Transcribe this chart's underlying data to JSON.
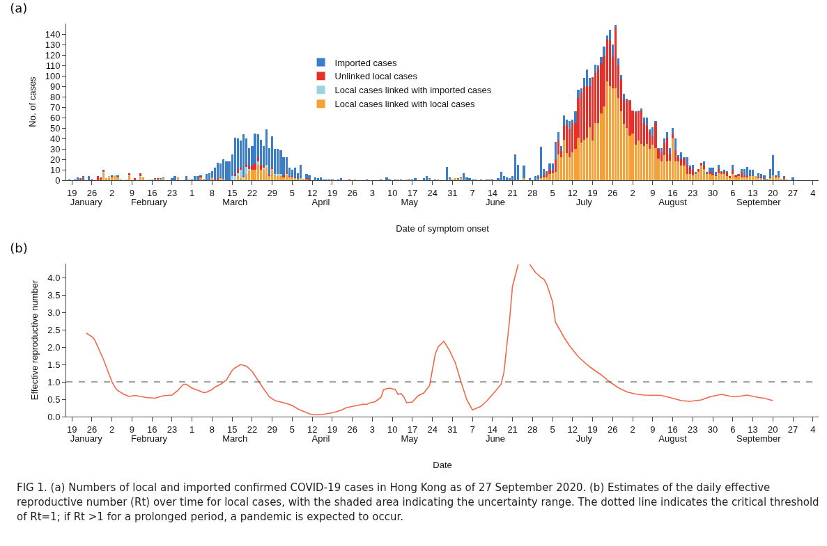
{
  "chart_data": [
    {
      "type": "bar",
      "title": "(a)",
      "xlabel": "Date of symptom onset",
      "ylabel": "No. of cases",
      "stacked": true,
      "legend": "top",
      "grid": false,
      "xlim": [
        "2020-01-17",
        "2020-10-06"
      ],
      "x2lim": [
        "2020-01-17",
        "2020-10-06"
      ],
      "ylim": [
        0,
        150
      ],
      "yticks": [
        0,
        10,
        20,
        30,
        40,
        50,
        60,
        70,
        80,
        90,
        100,
        110,
        120,
        130,
        140
      ],
      "xticks": [
        {
          "value": "2020-01-19",
          "label": "19"
        },
        {
          "value": "2020-01-26",
          "label": "26"
        },
        {
          "value": "2020-02-02",
          "label": "2"
        },
        {
          "value": "2020-02-09",
          "label": "9"
        },
        {
          "value": "2020-02-16",
          "label": "16"
        },
        {
          "value": "2020-02-23",
          "label": "23"
        },
        {
          "value": "2020-03-01",
          "label": "1"
        },
        {
          "value": "2020-03-08",
          "label": "8"
        },
        {
          "value": "2020-03-15",
          "label": "15"
        },
        {
          "value": "2020-03-22",
          "label": "22"
        },
        {
          "value": "2020-03-29",
          "label": "29"
        },
        {
          "value": "2020-04-05",
          "label": "5"
        },
        {
          "value": "2020-04-12",
          "label": "12"
        },
        {
          "value": "2020-04-19",
          "label": "19"
        },
        {
          "value": "2020-04-26",
          "label": "26"
        },
        {
          "value": "2020-05-03",
          "label": "3"
        },
        {
          "value": "2020-05-10",
          "label": "10"
        },
        {
          "value": "2020-05-17",
          "label": "17"
        },
        {
          "value": "2020-05-24",
          "label": "24"
        },
        {
          "value": "2020-05-31",
          "label": "31"
        },
        {
          "value": "2020-06-07",
          "label": "7"
        },
        {
          "value": "2020-06-14",
          "label": "14"
        },
        {
          "value": "2020-06-21",
          "label": "21"
        },
        {
          "value": "2020-06-28",
          "label": "28"
        },
        {
          "value": "2020-07-05",
          "label": "5"
        },
        {
          "value": "2020-07-12",
          "label": "12"
        },
        {
          "value": "2020-07-19",
          "label": "19"
        },
        {
          "value": "2020-07-26",
          "label": "26"
        },
        {
          "value": "2020-08-02",
          "label": "2"
        },
        {
          "value": "2020-08-09",
          "label": "9"
        },
        {
          "value": "2020-08-16",
          "label": "16"
        },
        {
          "value": "2020-08-23",
          "label": "23"
        },
        {
          "value": "2020-08-30",
          "label": "30"
        },
        {
          "value": "2020-09-06",
          "label": "6"
        },
        {
          "value": "2020-09-13",
          "label": "13"
        },
        {
          "value": "2020-09-20",
          "label": "20"
        },
        {
          "value": "2020-09-27",
          "label": "27"
        },
        {
          "value": "2020-10-04",
          "label": "4"
        }
      ],
      "x2ticks": [
        {
          "value": "2020-01-24",
          "label": "January"
        },
        {
          "value": "2020-02-15",
          "label": "February"
        },
        {
          "value": "2020-03-16",
          "label": "March"
        },
        {
          "value": "2020-04-15",
          "label": "April"
        },
        {
          "value": "2020-05-16",
          "label": "May"
        },
        {
          "value": "2020-06-15",
          "label": "June"
        },
        {
          "value": "2020-07-16",
          "label": "July"
        },
        {
          "value": "2020-08-16",
          "label": "August"
        },
        {
          "value": "2020-09-15",
          "label": "September"
        }
      ],
      "x": [
        "2020-01-18",
        "2020-01-19",
        "2020-01-20",
        "2020-01-21",
        "2020-01-22",
        "2020-01-23",
        "2020-01-24",
        "2020-01-25",
        "2020-01-26",
        "2020-01-27",
        "2020-01-28",
        "2020-01-29",
        "2020-01-30",
        "2020-01-31",
        "2020-02-01",
        "2020-02-02",
        "2020-02-03",
        "2020-02-04",
        "2020-02-05",
        "2020-02-06",
        "2020-02-07",
        "2020-02-08",
        "2020-02-09",
        "2020-02-10",
        "2020-02-11",
        "2020-02-12",
        "2020-02-13",
        "2020-02-14",
        "2020-02-15",
        "2020-02-16",
        "2020-02-17",
        "2020-02-18",
        "2020-02-19",
        "2020-02-20",
        "2020-02-21",
        "2020-02-22",
        "2020-02-23",
        "2020-02-24",
        "2020-02-25",
        "2020-02-26",
        "2020-02-27",
        "2020-02-28",
        "2020-02-29",
        "2020-03-01",
        "2020-03-02",
        "2020-03-03",
        "2020-03-04",
        "2020-03-05",
        "2020-03-06",
        "2020-03-07",
        "2020-03-08",
        "2020-03-09",
        "2020-03-10",
        "2020-03-11",
        "2020-03-12",
        "2020-03-13",
        "2020-03-14",
        "2020-03-15",
        "2020-03-16",
        "2020-03-17",
        "2020-03-18",
        "2020-03-19",
        "2020-03-20",
        "2020-03-21",
        "2020-03-22",
        "2020-03-23",
        "2020-03-24",
        "2020-03-25",
        "2020-03-26",
        "2020-03-27",
        "2020-03-28",
        "2020-03-29",
        "2020-03-30",
        "2020-03-31",
        "2020-04-01",
        "2020-04-02",
        "2020-04-03",
        "2020-04-04",
        "2020-04-05",
        "2020-04-06",
        "2020-04-07",
        "2020-04-08",
        "2020-04-09",
        "2020-04-10",
        "2020-04-11",
        "2020-04-12",
        "2020-04-13",
        "2020-04-14",
        "2020-04-15",
        "2020-04-16",
        "2020-04-17",
        "2020-04-18",
        "2020-04-19",
        "2020-04-20",
        "2020-04-21",
        "2020-04-22",
        "2020-04-23",
        "2020-04-24",
        "2020-04-25",
        "2020-04-26",
        "2020-04-27",
        "2020-04-28",
        "2020-04-29",
        "2020-04-30",
        "2020-05-01",
        "2020-05-02",
        "2020-05-03",
        "2020-05-04",
        "2020-05-05",
        "2020-05-06",
        "2020-05-07",
        "2020-05-08",
        "2020-05-09",
        "2020-05-10",
        "2020-05-11",
        "2020-05-12",
        "2020-05-13",
        "2020-05-14",
        "2020-05-15",
        "2020-05-16",
        "2020-05-17",
        "2020-05-18",
        "2020-05-19",
        "2020-05-20",
        "2020-05-21",
        "2020-05-22",
        "2020-05-23",
        "2020-05-24",
        "2020-05-25",
        "2020-05-26",
        "2020-05-27",
        "2020-05-28",
        "2020-05-29",
        "2020-05-30",
        "2020-05-31",
        "2020-06-01",
        "2020-06-02",
        "2020-06-03",
        "2020-06-04",
        "2020-06-05",
        "2020-06-06",
        "2020-06-07",
        "2020-06-08",
        "2020-06-09",
        "2020-06-10",
        "2020-06-11",
        "2020-06-12",
        "2020-06-13",
        "2020-06-14",
        "2020-06-15",
        "2020-06-16",
        "2020-06-17",
        "2020-06-18",
        "2020-06-19",
        "2020-06-20",
        "2020-06-21",
        "2020-06-22",
        "2020-06-23",
        "2020-06-24",
        "2020-06-25",
        "2020-06-26",
        "2020-06-27",
        "2020-06-28",
        "2020-06-29",
        "2020-06-30",
        "2020-07-01",
        "2020-07-02",
        "2020-07-03",
        "2020-07-04",
        "2020-07-05",
        "2020-07-06",
        "2020-07-07",
        "2020-07-08",
        "2020-07-09",
        "2020-07-10",
        "2020-07-11",
        "2020-07-12",
        "2020-07-13",
        "2020-07-14",
        "2020-07-15",
        "2020-07-16",
        "2020-07-17",
        "2020-07-18",
        "2020-07-19",
        "2020-07-20",
        "2020-07-21",
        "2020-07-22",
        "2020-07-23",
        "2020-07-24",
        "2020-07-25",
        "2020-07-26",
        "2020-07-27",
        "2020-07-28",
        "2020-07-29",
        "2020-07-30",
        "2020-07-31",
        "2020-08-01",
        "2020-08-02",
        "2020-08-03",
        "2020-08-04",
        "2020-08-05",
        "2020-08-06",
        "2020-08-07",
        "2020-08-08",
        "2020-08-09",
        "2020-08-10",
        "2020-08-11",
        "2020-08-12",
        "2020-08-13",
        "2020-08-14",
        "2020-08-15",
        "2020-08-16",
        "2020-08-17",
        "2020-08-18",
        "2020-08-19",
        "2020-08-20",
        "2020-08-21",
        "2020-08-22",
        "2020-08-23",
        "2020-08-24",
        "2020-08-25",
        "2020-08-26",
        "2020-08-27",
        "2020-08-28",
        "2020-08-29",
        "2020-08-30",
        "2020-08-31",
        "2020-09-01",
        "2020-09-02",
        "2020-09-03",
        "2020-09-04",
        "2020-09-05",
        "2020-09-06",
        "2020-09-07",
        "2020-09-08",
        "2020-09-09",
        "2020-09-10",
        "2020-09-11",
        "2020-09-12",
        "2020-09-13",
        "2020-09-14",
        "2020-09-15",
        "2020-09-16",
        "2020-09-17",
        "2020-09-18",
        "2020-09-19",
        "2020-09-20",
        "2020-09-21",
        "2020-09-22",
        "2020-09-23",
        "2020-09-24",
        "2020-09-25",
        "2020-09-26",
        "2020-09-27"
      ],
      "series": [
        {
          "name": "Local cases linked with local cases",
          "color": "#f6a035",
          "values": [
            null,
            null,
            null,
            null,
            null,
            null,
            null,
            null,
            null,
            null,
            null,
            null,
            7,
            2,
            2,
            3,
            4,
            3,
            1,
            null,
            null,
            4,
            null,
            null,
            null,
            3,
            3,
            null,
            null,
            1,
            1,
            1,
            1,
            2,
            null,
            null,
            null,
            null,
            3,
            null,
            null,
            null,
            1,
            null,
            null,
            null,
            3,
            null,
            null,
            null,
            3,
            null,
            null,
            2,
            null,
            null,
            null,
            null,
            null,
            4,
            2,
            1,
            6,
            9,
            10,
            10,
            15,
            10,
            10,
            12,
            4,
            10,
            5,
            4,
            4,
            3,
            5,
            3,
            3,
            2,
            1,
            2,
            null,
            1,
            null,
            null,
            null,
            null,
            null,
            null,
            null,
            null,
            null,
            null,
            null,
            null,
            null,
            null,
            null,
            null,
            1,
            null,
            null,
            null,
            null,
            null,
            null,
            null,
            null,
            null,
            null,
            null,
            null,
            null,
            null,
            1,
            null,
            null,
            1,
            null,
            null,
            null,
            null,
            null,
            null,
            null,
            1,
            null,
            null,
            1,
            null,
            null,
            null,
            1,
            1,
            2,
            1,
            2,
            null,
            null,
            null,
            null,
            null,
            null,
            null,
            null,
            null,
            null,
            null,
            null,
            null,
            null,
            null,
            null,
            null,
            null,
            null,
            null,
            null,
            2,
            null,
            null,
            null,
            null,
            1,
            2,
            3,
            3,
            6,
            7,
            8,
            25,
            22,
            39,
            26,
            22,
            27,
            30,
            41,
            36,
            39,
            41,
            51,
            38,
            55,
            55,
            64,
            71,
            95,
            90,
            88,
            88,
            79,
            66,
            54,
            50,
            43,
            45,
            34,
            38,
            35,
            33,
            35,
            30,
            34,
            31,
            21,
            18,
            24,
            18,
            19,
            40,
            18,
            18,
            14,
            14,
            6,
            6,
            5,
            6,
            8,
            14,
            11,
            6,
            6,
            5,
            4,
            7,
            6,
            6,
            4,
            2,
            6,
            3,
            4,
            3,
            3,
            3,
            4,
            4,
            4,
            2,
            2,
            1,
            null,
            2,
            5,
            3,
            3,
            null,
            1,
            1,
            null,
            null
          ]
        },
        {
          "name": "Local cases linked with imported cases",
          "color": "#99d4e2",
          "values": [
            null,
            null,
            null,
            null,
            null,
            null,
            null,
            null,
            null,
            null,
            null,
            null,
            1,
            null,
            2,
            null,
            1,
            null,
            null,
            null,
            1,
            1,
            null,
            null,
            null,
            1,
            null,
            null,
            1,
            null,
            null,
            null,
            null,
            null,
            null,
            null,
            null,
            null,
            null,
            null,
            null,
            null,
            null,
            null,
            null,
            null,
            null,
            null,
            null,
            null,
            null,
            null,
            null,
            null,
            1,
            null,
            null,
            4,
            4,
            3,
            8,
            2,
            7,
            2,
            null,
            null,
            3,
            null,
            2,
            3,
            null,
            1,
            1,
            2,
            2,
            null,
            1,
            null,
            null,
            null,
            null,
            null,
            null,
            null,
            null,
            null,
            null,
            null,
            null,
            null,
            null,
            null,
            null,
            null,
            null,
            null,
            null,
            null,
            null,
            null,
            null,
            null,
            null,
            null,
            null,
            null,
            null,
            null,
            null,
            null,
            null,
            null,
            null,
            null,
            null,
            null,
            null,
            null,
            null,
            null,
            null,
            null,
            null,
            null,
            null,
            null,
            null,
            null,
            null,
            null,
            null,
            null,
            null,
            null,
            null,
            null,
            null,
            null,
            null,
            null,
            null,
            null,
            null,
            null,
            null,
            null,
            null,
            null,
            null,
            null,
            null,
            null,
            null,
            null,
            null,
            null,
            null,
            null,
            null,
            null,
            null,
            null,
            null,
            null,
            null,
            null,
            null,
            null,
            null,
            null,
            null,
            null,
            null,
            null,
            null,
            null,
            null,
            null,
            null,
            null,
            null,
            null,
            null,
            null,
            null,
            null,
            null,
            null,
            null,
            null,
            null,
            null,
            null,
            null,
            null,
            null,
            null,
            null,
            null,
            null,
            null,
            null,
            null,
            null,
            null,
            null,
            null,
            null,
            null,
            null,
            null,
            null,
            null,
            null,
            null,
            null,
            null,
            null,
            null,
            null,
            null,
            null,
            null,
            null,
            null,
            null,
            null,
            null,
            null,
            null,
            null,
            null,
            null,
            null,
            null,
            null,
            null,
            null,
            null,
            null,
            null,
            null,
            null,
            null,
            null,
            null,
            null,
            null,
            null,
            null,
            null,
            null,
            null,
            null
          ]
        },
        {
          "name": "Unlinked local cases",
          "color": "#e8302a",
          "values": [
            null,
            null,
            null,
            null,
            2,
            1,
            null,
            null,
            1,
            null,
            4,
            2,
            1,
            null,
            null,
            1,
            null,
            null,
            null,
            null,
            null,
            2,
            null,
            2,
            null,
            2,
            null,
            null,
            null,
            null,
            null,
            1,
            null,
            null,
            null,
            null,
            null,
            null,
            null,
            null,
            null,
            1,
            null,
            null,
            null,
            null,
            1,
            null,
            null,
            null,
            null,
            null,
            2,
            1,
            null,
            null,
            null,
            null,
            2,
            4,
            2,
            1,
            2,
            3,
            4,
            6,
            4,
            5,
            3,
            null,
            1,
            1,
            null,
            null,
            null,
            2,
            2,
            1,
            null,
            1,
            null,
            null,
            null,
            1,
            1,
            null,
            null,
            null,
            null,
            null,
            null,
            null,
            null,
            null,
            null,
            null,
            null,
            null,
            1,
            null,
            null,
            null,
            null,
            null,
            null,
            null,
            null,
            null,
            null,
            null,
            null,
            null,
            1,
            null,
            null,
            null,
            null,
            null,
            null,
            null,
            null,
            null,
            null,
            null,
            null,
            null,
            null,
            null,
            null,
            null,
            null,
            null,
            null,
            null,
            null,
            null,
            null,
            null,
            null,
            null,
            null,
            null,
            null,
            null,
            null,
            null,
            null,
            null,
            null,
            null,
            null,
            null,
            null,
            null,
            null,
            null,
            null,
            null,
            null,
            null,
            null,
            null,
            null,
            null,
            null,
            1,
            2,
            4,
            4,
            2,
            12,
            13,
            6,
            14,
            27,
            27,
            28,
            25,
            38,
            48,
            51,
            49,
            39,
            60,
            48,
            52,
            48,
            48,
            40,
            45,
            30,
            58,
            31,
            31,
            24,
            26,
            33,
            22,
            31,
            28,
            32,
            22,
            18,
            17,
            8,
            24,
            9,
            9,
            12,
            23,
            6,
            5,
            11,
            4,
            6,
            7,
            9,
            6,
            5,
            null,
            3,
            3,
            3,
            null,
            3,
            1,
            1,
            4,
            2,
            2,
            3,
            2,
            4,
            2,
            1,
            5,
            2,
            1,
            1,
            null,
            null,
            1,
            1,
            null,
            1,
            1,
            null,
            null,
            1,
            null,
            1,
            null,
            null,
            null
          ]
        },
        {
          "name": "Imported cases",
          "color": "#3a7dc9",
          "values": [
            1,
            null,
            1,
            3,
            null,
            3,
            null,
            4,
            null,
            null,
            null,
            1,
            1,
            null,
            null,
            1,
            null,
            2,
            null,
            null,
            null,
            null,
            null,
            null,
            null,
            1,
            null,
            null,
            null,
            null,
            1,
            null,
            1,
            1,
            null,
            null,
            2,
            4,
            null,
            null,
            null,
            3,
            null,
            1,
            4,
            4,
            1,
            1,
            6,
            7,
            6,
            12,
            15,
            13,
            19,
            18,
            18,
            21,
            35,
            29,
            26,
            40,
            25,
            17,
            19,
            29,
            22,
            24,
            18,
            34,
            26,
            30,
            24,
            24,
            23,
            17,
            14,
            8,
            7,
            9,
            6,
            13,
            1,
            4,
            4,
            null,
            3,
            2,
            3,
            1,
            1,
            1,
            1,
            null,
            1,
            2,
            null,
            null,
            null,
            null,
            null,
            null,
            null,
            null,
            1,
            null,
            null,
            null,
            null,
            1,
            null,
            3,
            null,
            null,
            1,
            null,
            1,
            null,
            null,
            1,
            1,
            2,
            null,
            null,
            2,
            4,
            1,
            null,
            1,
            null,
            null,
            null,
            13,
            2,
            null,
            null,
            1,
            1,
            7,
            3,
            2,
            1,
            1,
            null,
            1,
            null,
            1,
            1,
            1,
            null,
            2,
            8,
            4,
            3,
            2,
            4,
            25,
            15,
            null,
            12,
            null,
            2,
            null,
            4,
            4,
            29,
            6,
            2,
            6,
            7,
            17,
            8,
            5,
            9,
            5,
            8,
            3,
            11,
            8,
            4,
            8,
            16,
            8,
            1,
            8,
            3,
            6,
            9,
            4,
            9,
            12,
            3,
            7,
            4,
            5,
            2,
            1,
            null,
            1,
            1,
            2,
            5,
            7,
            2,
            9,
            2,
            1,
            4,
            4,
            5,
            6,
            5,
            11,
            2,
            7,
            1,
            7,
            2,
            5,
            2,
            null,
            null,
            4,
            2,
            3,
            6,
            3,
            4,
            1,
            2,
            2,
            null,
            5,
            null,
            1,
            3,
            6,
            9,
            5,
            6,
            null,
            4,
            3,
            4,
            null,
            8,
            19,
            2,
            5,
            1,
            2,
            null,
            null,
            3
          ]
        }
      ]
    },
    {
      "type": "line",
      "title": "(b)",
      "xlabel": "Date",
      "ylabel": "Effective reproductive number",
      "grid": false,
      "xlim": [
        "2020-01-17",
        "2020-10-06"
      ],
      "x2lim": [
        "2020-01-17",
        "2020-10-06"
      ],
      "ylim": [
        0,
        4.4
      ],
      "yticks": [
        {
          "value": 0,
          "label": "0.0"
        },
        {
          "value": 0.5,
          "label": "0.5"
        },
        {
          "value": 1,
          "label": "1.0"
        },
        {
          "value": 1.5,
          "label": "1.5"
        },
        {
          "value": 2,
          "label": "2.0"
        },
        {
          "value": 2.5,
          "label": "2.5"
        },
        {
          "value": 3,
          "label": "3.0"
        },
        {
          "value": 3.5,
          "label": "3.5"
        },
        {
          "value": 4,
          "label": "4.0"
        }
      ],
      "xticks": [
        {
          "value": "2020-01-19",
          "label": "19"
        },
        {
          "value": "2020-01-26",
          "label": "26"
        },
        {
          "value": "2020-02-02",
          "label": "2"
        },
        {
          "value": "2020-02-09",
          "label": "9"
        },
        {
          "value": "2020-02-16",
          "label": "16"
        },
        {
          "value": "2020-02-23",
          "label": "23"
        },
        {
          "value": "2020-03-01",
          "label": "1"
        },
        {
          "value": "2020-03-08",
          "label": "8"
        },
        {
          "value": "2020-03-15",
          "label": "15"
        },
        {
          "value": "2020-03-22",
          "label": "22"
        },
        {
          "value": "2020-03-29",
          "label": "29"
        },
        {
          "value": "2020-04-05",
          "label": "5"
        },
        {
          "value": "2020-04-12",
          "label": "12"
        },
        {
          "value": "2020-04-19",
          "label": "19"
        },
        {
          "value": "2020-04-26",
          "label": "26"
        },
        {
          "value": "2020-05-03",
          "label": "3"
        },
        {
          "value": "2020-05-10",
          "label": "10"
        },
        {
          "value": "2020-05-17",
          "label": "17"
        },
        {
          "value": "2020-05-24",
          "label": "24"
        },
        {
          "value": "2020-05-31",
          "label": "31"
        },
        {
          "value": "2020-06-07",
          "label": "7"
        },
        {
          "value": "2020-06-14",
          "label": "14"
        },
        {
          "value": "2020-06-21",
          "label": "21"
        },
        {
          "value": "2020-06-28",
          "label": "28"
        },
        {
          "value": "2020-07-05",
          "label": "5"
        },
        {
          "value": "2020-07-12",
          "label": "12"
        },
        {
          "value": "2020-07-19",
          "label": "19"
        },
        {
          "value": "2020-07-26",
          "label": "26"
        },
        {
          "value": "2020-08-02",
          "label": "2"
        },
        {
          "value": "2020-08-09",
          "label": "9"
        },
        {
          "value": "2020-08-16",
          "label": "16"
        },
        {
          "value": "2020-08-23",
          "label": "23"
        },
        {
          "value": "2020-08-30",
          "label": "30"
        },
        {
          "value": "2020-09-06",
          "label": "6"
        },
        {
          "value": "2020-09-13",
          "label": "13"
        },
        {
          "value": "2020-09-20",
          "label": "20"
        },
        {
          "value": "2020-09-27",
          "label": "27"
        },
        {
          "value": "2020-10-04",
          "label": "4"
        }
      ],
      "x2ticks": [
        {
          "value": "2020-01-24",
          "label": "January"
        },
        {
          "value": "2020-02-15",
          "label": "February"
        },
        {
          "value": "2020-03-16",
          "label": "March"
        },
        {
          "value": "2020-04-15",
          "label": "April"
        },
        {
          "value": "2020-05-16",
          "label": "May"
        },
        {
          "value": "2020-06-15",
          "label": "June"
        },
        {
          "value": "2020-07-16",
          "label": "July"
        },
        {
          "value": "2020-08-16",
          "label": "August"
        },
        {
          "value": "2020-09-15",
          "label": "September"
        }
      ],
      "ref_lines": [
        {
          "axis": "y",
          "value": 1,
          "line_style": "dashed",
          "color": "#444444"
        }
      ],
      "annotations": [
        "FIG 1.  (a) Numbers of local and imported confirmed COVID-19 cases in Hong Kong as of 27 September 2020. (b) Estimates of the daily effective reproductive number (Rt) over time for local cases, with the shaded area indicating the uncertainty range. The dotted line indicates the critical threshold of Rt=1; if Rt >1 for a prolonged period, a pandemic is expected to occur."
      ],
      "series": [
        {
          "color": "#f0684a",
          "x": [
            "2020-01-24",
            "2020-01-26",
            "2020-01-27",
            "2020-01-30",
            "2020-02-02",
            "2020-02-03",
            "2020-02-04",
            "2020-02-06",
            "2020-02-08",
            "2020-02-10",
            "2020-02-14",
            "2020-02-17",
            "2020-02-20",
            "2020-02-23",
            "2020-02-25",
            "2020-02-27",
            "2020-02-28",
            "2020-03-01",
            "2020-03-03",
            "2020-03-05",
            "2020-03-06",
            "2020-03-08",
            "2020-03-09",
            "2020-03-11",
            "2020-03-13",
            "2020-03-15",
            "2020-03-16",
            "2020-03-18",
            "2020-03-20",
            "2020-03-22",
            "2020-03-24",
            "2020-03-26",
            "2020-03-28",
            "2020-03-30",
            "2020-04-01",
            "2020-04-03",
            "2020-04-05",
            "2020-04-07",
            "2020-04-09",
            "2020-04-11",
            "2020-04-13",
            "2020-04-16",
            "2020-04-19",
            "2020-04-22",
            "2020-04-24",
            "2020-04-27",
            "2020-04-30",
            "2020-05-01",
            "2020-05-02",
            "2020-05-04",
            "2020-05-06",
            "2020-05-07",
            "2020-05-09",
            "2020-05-11",
            "2020-05-12",
            "2020-05-13",
            "2020-05-14",
            "2020-05-15",
            "2020-05-17",
            "2020-05-19",
            "2020-05-21",
            "2020-05-23",
            "2020-05-25",
            "2020-05-26",
            "2020-05-28",
            "2020-05-30",
            "2020-06-01",
            "2020-06-03",
            "2020-06-05",
            "2020-06-07",
            "2020-06-10",
            "2020-06-12",
            "2020-06-15",
            "2020-06-17",
            "2020-06-18",
            "2020-06-20",
            "2020-06-21",
            "2020-06-23",
            "2020-06-24",
            "2020-06-27",
            "2020-06-29",
            "2020-07-01",
            "2020-07-02",
            "2020-07-03",
            "2020-07-05",
            "2020-07-06",
            "2020-07-09",
            "2020-07-11",
            "2020-07-14",
            "2020-07-18",
            "2020-07-22",
            "2020-07-25",
            "2020-07-28",
            "2020-07-31",
            "2020-08-03",
            "2020-08-06",
            "2020-08-12",
            "2020-08-15",
            "2020-08-19",
            "2020-08-22",
            "2020-08-26",
            "2020-08-29",
            "2020-09-02",
            "2020-09-05",
            "2020-09-07",
            "2020-09-11",
            "2020-09-15",
            "2020-09-17",
            "2020-09-20"
          ],
          "values": [
            2.4,
            2.3,
            2.2,
            1.65,
            1.0,
            0.85,
            0.75,
            0.65,
            0.58,
            0.61,
            0.55,
            0.53,
            0.6,
            0.62,
            0.75,
            0.93,
            0.93,
            0.82,
            0.76,
            0.69,
            0.7,
            0.78,
            0.85,
            0.93,
            1.05,
            1.33,
            1.4,
            1.5,
            1.45,
            1.3,
            1.05,
            0.8,
            0.57,
            0.46,
            0.42,
            0.38,
            0.32,
            0.22,
            0.15,
            0.08,
            0.05,
            0.07,
            0.11,
            0.18,
            0.26,
            0.31,
            0.36,
            0.35,
            0.39,
            0.43,
            0.55,
            0.78,
            0.82,
            0.78,
            0.64,
            0.66,
            0.57,
            0.4,
            0.42,
            0.6,
            0.68,
            0.89,
            1.8,
            2.0,
            2.17,
            1.9,
            1.55,
            1.0,
            0.49,
            0.19,
            0.3,
            0.45,
            0.73,
            0.93,
            1.27,
            2.8,
            3.75,
            4.38,
            null,
            4.38,
            4.15,
            4.0,
            3.95,
            3.8,
            3.3,
            2.72,
            2.28,
            2.03,
            1.72,
            1.43,
            1.2,
            1.0,
            0.83,
            0.71,
            0.65,
            0.62,
            0.61,
            0.55,
            0.46,
            0.44,
            0.48,
            0.57,
            0.64,
            0.59,
            0.57,
            0.62,
            0.55,
            0.53,
            0.46
          ]
        }
      ]
    }
  ]
}
